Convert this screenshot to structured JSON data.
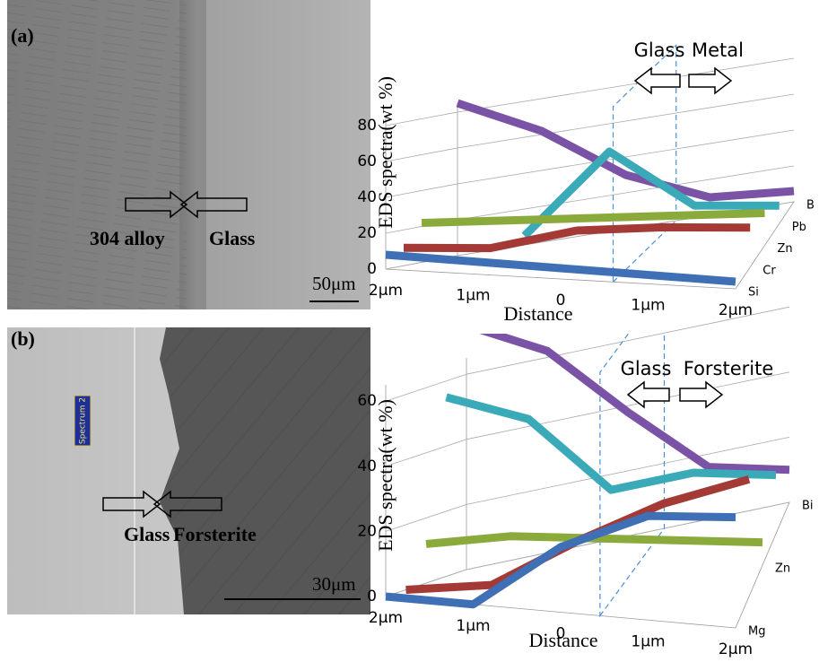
{
  "panels": [
    {
      "label": "(a)",
      "annotations": [
        "304 alloy",
        "Glass"
      ],
      "scale_bar": "50μm"
    },
    {
      "label": "(b)",
      "inset_label": "Spectrum 2",
      "annotations": [
        "Glass",
        "Forsterite"
      ],
      "scale_bar": "30μm"
    }
  ],
  "chart_data": [
    {
      "type": "line",
      "y_label": "EDS spectra(wt %)",
      "x_label": "Distance",
      "categories": [
        "2μm",
        "1μm",
        "0",
        "1μm",
        "2μm"
      ],
      "depth_categories": [
        "Si",
        "Cr",
        "Zn",
        "Pb",
        "B"
      ],
      "series": [
        {
          "color": "#3f6fb5",
          "values": [
            8,
            7,
            6,
            5,
            4
          ]
        },
        {
          "color": "#a33a36",
          "values": [
            10,
            10,
            20,
            22,
            22
          ]
        },
        {
          "color": "#8aab3c",
          "values": [
            22,
            21,
            20,
            19,
            18
          ]
        },
        {
          "color": "#3aa9b8",
          "values": [
            null,
            8,
            50,
            15,
            10
          ]
        },
        {
          "color": "#7a52a6",
          "values": [
            85,
            62,
            30,
            10,
            6
          ]
        }
      ],
      "ylim": [
        0,
        85
      ],
      "yticks": [
        0,
        20,
        40,
        60,
        80
      ],
      "grid": true,
      "annotations": [
        "Glass",
        "Metal"
      ]
    },
    {
      "type": "line",
      "y_label": "EDS spectra(wt %)",
      "x_label": "Distance",
      "categories": [
        "2μm",
        "1μm",
        "0",
        "1μm",
        "2μm"
      ],
      "depth_categories": [
        "Mg",
        null,
        "Zn",
        null,
        "Bi"
      ],
      "series": [
        {
          "color": "#3f6fb5",
          "values": [
            0,
            0,
            20,
            32,
            34
          ]
        },
        {
          "color": "#a33a36",
          "values": [
            0,
            2,
            16,
            28,
            36
          ]
        },
        {
          "color": "#8aab3c",
          "values": [
            12,
            13,
            11,
            9,
            7
          ]
        },
        {
          "color": "#3aa9b8",
          "values": [
            55,
            45,
            20,
            22,
            18
          ]
        },
        {
          "color": "#7a52a6",
          "values": [
            75,
            62,
            38,
            16,
            10
          ]
        }
      ],
      "ylim": [
        0,
        65
      ],
      "yticks": [
        0,
        20,
        40,
        60
      ],
      "grid": true,
      "annotations": [
        "Glass",
        "Forsterite"
      ]
    }
  ]
}
